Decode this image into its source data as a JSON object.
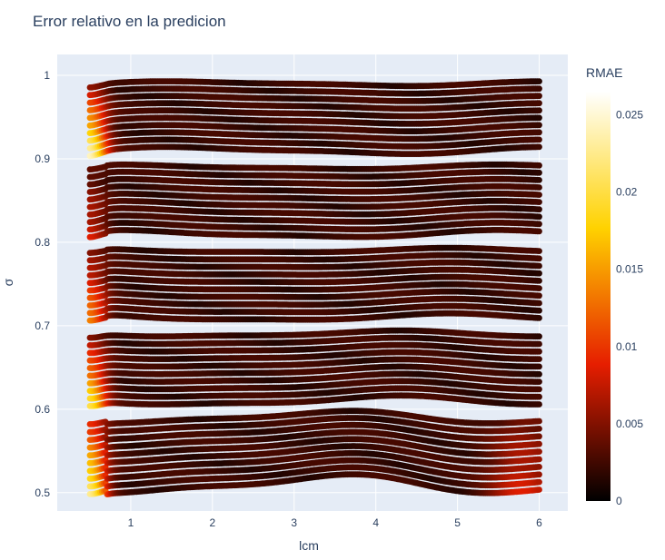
{
  "chart_data": {
    "type": "scatter",
    "title": "Error relativo en la predicion",
    "xlabel": "lcm",
    "ylabel": "σ",
    "xlim": [
      0.1,
      6.35
    ],
    "ylim": [
      0.478,
      1.025
    ],
    "xticks": [
      1,
      2,
      3,
      4,
      5,
      6
    ],
    "yticks": [
      0.5,
      0.6,
      0.7,
      0.8,
      0.9,
      1
    ],
    "ytick_labels": [
      "0.5",
      "0.6",
      "0.7",
      "0.8",
      "0.9",
      "1"
    ],
    "x_range": [
      0.5,
      6.0
    ],
    "background": "#e5ecf6",
    "grid": true,
    "colorbar": {
      "title": "RMAE",
      "range": [
        0,
        0.0265
      ],
      "ticks": [
        0,
        0.005,
        0.01,
        0.015,
        0.02,
        0.025
      ],
      "tick_labels": [
        "0",
        "0.005",
        "0.01",
        "0.015",
        "0.02",
        "0.025"
      ],
      "colorscale": [
        "#000000",
        "#e61e00",
        "#ffd200",
        "#ffffff"
      ]
    },
    "band_groups": [
      {
        "sigma_range": [
          0.91,
          0.99
        ],
        "curves": 10,
        "wave_amplitude": 0.003,
        "edge_error": 0.022,
        "edge_low_error": 0.014
      },
      {
        "sigma_range": [
          0.81,
          0.89
        ],
        "curves": 10,
        "wave_amplitude": 0.003,
        "edge_error": 0.006,
        "edge_low_error": 0.004
      },
      {
        "sigma_range": [
          0.71,
          0.79
        ],
        "curves": 10,
        "wave_amplitude": 0.003,
        "edge_error": 0.012,
        "edge_low_error": 0.008
      },
      {
        "sigma_range": [
          0.61,
          0.69
        ],
        "curves": 10,
        "wave_amplitude": 0.004,
        "edge_error": 0.018,
        "edge_low_error": 0.012
      },
      {
        "sigma_range": [
          0.51,
          0.59
        ],
        "curves": 10,
        "wave_amplitude": 0.008,
        "edge_error": 0.02,
        "edge_low_error": 0.024
      }
    ]
  }
}
